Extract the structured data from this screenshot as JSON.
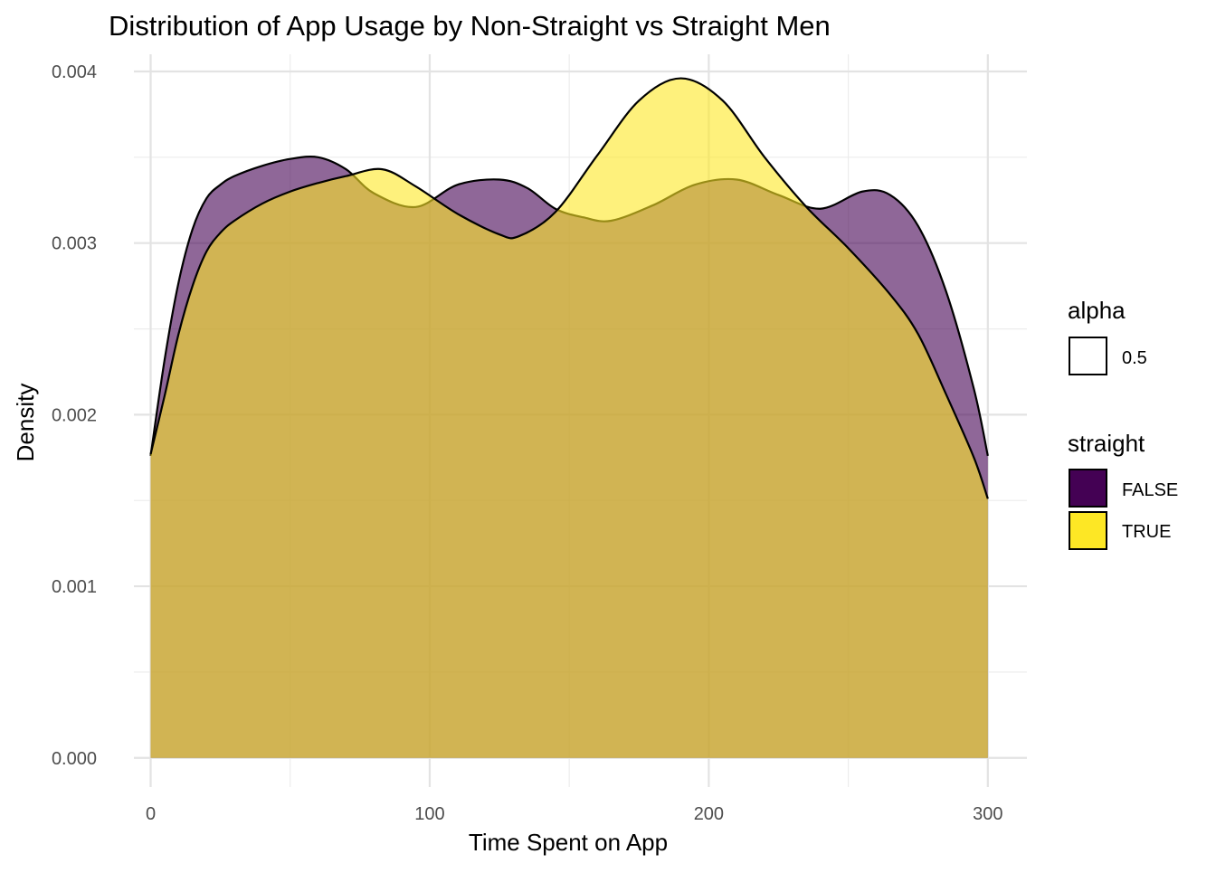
{
  "chart_data": {
    "type": "area",
    "title": "Distribution of App Usage by Non-Straight vs Straight Men",
    "xlabel": "Time Spent on App",
    "ylabel": "Density",
    "xlim": [
      -6,
      314
    ],
    "ylim": [
      -0.00017,
      0.0041
    ],
    "x_ticks": [
      0,
      100,
      200,
      300
    ],
    "x_tick_labels": [
      "0",
      "100",
      "200",
      "300"
    ],
    "y_ticks": [
      0,
      0.001,
      0.002,
      0.003,
      0.004
    ],
    "y_tick_labels": [
      "0.000",
      "0.001",
      "0.002",
      "0.003",
      "0.004"
    ],
    "grid": true,
    "legend_position": "right",
    "legend": {
      "alpha": {
        "title": "alpha",
        "entries": [
          {
            "label": "0.5"
          }
        ]
      },
      "fill": {
        "title": "straight",
        "entries": [
          {
            "label": "FALSE",
            "color": "#440154"
          },
          {
            "label": "TRUE",
            "color": "#FDE725"
          }
        ]
      }
    },
    "series": [
      {
        "name": "FALSE",
        "color": "#440154",
        "x": [
          0,
          5,
          10,
          15,
          20,
          25,
          30,
          40,
          50,
          60,
          70,
          80,
          95,
          110,
          125,
          135,
          145,
          155,
          165,
          180,
          195,
          210,
          225,
          240,
          255,
          265,
          275,
          285,
          295,
          300
        ],
        "values": [
          0.00176,
          0.00232,
          0.00277,
          0.00308,
          0.00326,
          0.00334,
          0.00339,
          0.00345,
          0.00349,
          0.0035,
          0.00343,
          0.00329,
          0.00321,
          0.00334,
          0.00337,
          0.00332,
          0.0032,
          0.00315,
          0.00313,
          0.00322,
          0.00334,
          0.00337,
          0.00328,
          0.0032,
          0.0033,
          0.00328,
          0.0031,
          0.00272,
          0.00215,
          0.00176
        ]
      },
      {
        "name": "TRUE",
        "color": "#FDE725",
        "x": [
          0,
          5,
          10,
          15,
          20,
          25,
          30,
          40,
          50,
          60,
          70,
          83,
          95,
          110,
          125,
          132,
          145,
          160,
          175,
          190,
          205,
          220,
          235,
          250,
          265,
          275,
          285,
          295,
          300
        ],
        "values": [
          0.00177,
          0.00211,
          0.00247,
          0.00275,
          0.00295,
          0.00306,
          0.00313,
          0.00323,
          0.0033,
          0.00335,
          0.00339,
          0.00343,
          0.00333,
          0.00317,
          0.00305,
          0.00304,
          0.00318,
          0.00351,
          0.00383,
          0.00396,
          0.00383,
          0.0035,
          0.00321,
          0.00297,
          0.0027,
          0.00247,
          0.00212,
          0.00175,
          0.00151
        ]
      }
    ]
  }
}
